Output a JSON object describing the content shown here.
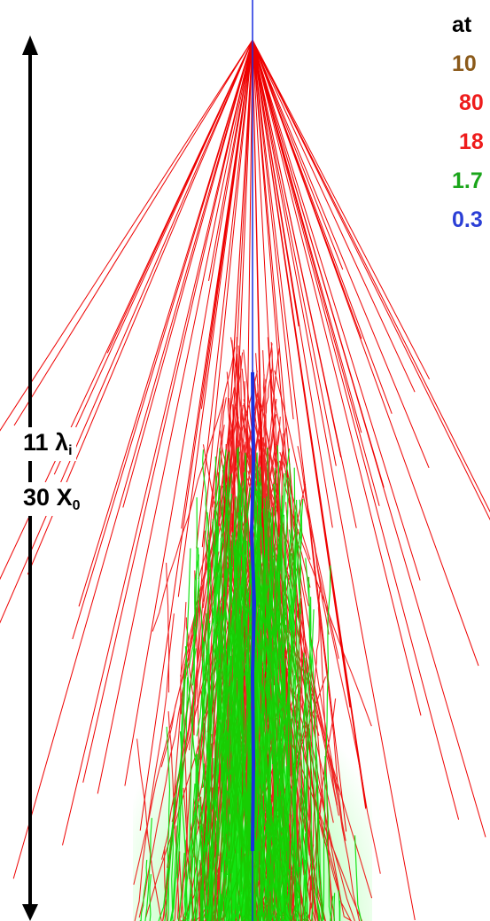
{
  "legend": {
    "header": "at",
    "lines": [
      {
        "text": "10",
        "color": "#8b5a1a"
      },
      {
        "text": "80",
        "color": "#ee1c1c"
      },
      {
        "text": "18",
        "color": "#ee1c1c"
      },
      {
        "text": "1.7",
        "color": "#1aa51a"
      },
      {
        "text": "0.3",
        "color": "#2b3fd6"
      }
    ]
  },
  "labels": {
    "lambda_count": "11",
    "lambda_symbol": "λ",
    "lambda_sub": "i",
    "x0_count": "30",
    "x0_symbol": "X",
    "x0_sub": "0"
  },
  "colors": {
    "background": "#ffffff",
    "hadron_tracks": "#ee0000",
    "em_tracks": "#00e000",
    "core_track": "#1a2fe0",
    "arrow": "#000000"
  }
}
